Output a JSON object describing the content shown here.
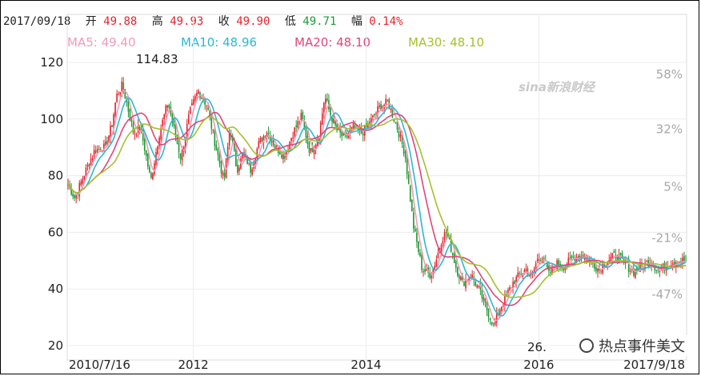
{
  "quote": {
    "date": "2017/09/18",
    "open_label": "开",
    "open_value": "49.88",
    "high_label": "高",
    "high_value": "49.93",
    "close_label": "收",
    "close_value": "49.90",
    "low_label": "低",
    "low_value": "49.71",
    "change_label": "幅",
    "change_value": "0.14%",
    "colors": {
      "up": "#e8232c",
      "down": "#1a9b33",
      "neutral": "#222222"
    }
  },
  "moving_averages": [
    {
      "label": "MA5: 49.40",
      "color": "#f39ab9"
    },
    {
      "label": "MA10: 48.96",
      "color": "#2bb8d4"
    },
    {
      "label": "MA20: 48.10",
      "color": "#e0457a"
    },
    {
      "label": "MA30: 48.10",
      "color": "#a3c22e"
    }
  ],
  "watermark": "sina新浪财经",
  "overlay_text": "热点事件美文",
  "chart_data": {
    "type": "line",
    "title": "",
    "y_ticks": [
      120,
      100,
      80,
      60,
      40,
      20
    ],
    "ylim": [
      20,
      120
    ],
    "pct_ticks": [
      "58%",
      "32%",
      "5%",
      "-21%",
      "-47%"
    ],
    "pct_tick_values": [
      115.8,
      96.4,
      76.1,
      58.0,
      38.1
    ],
    "x_ticks": [
      {
        "label": "2010/7/16",
        "x": 2010.54
      },
      {
        "label": "2012",
        "x": 2012.0
      },
      {
        "label": "2014",
        "x": 2014.0
      },
      {
        "label": "2016",
        "x": 2016.0
      },
      {
        "label": "2017/9/18",
        "x": 2017.71
      }
    ],
    "xlim": [
      2010.54,
      2017.71
    ],
    "annotations": [
      {
        "text": "114.83",
        "x": 2011.2,
        "y": 114.83
      },
      {
        "text": "26.",
        "x": 2015.95,
        "y": 26.0
      }
    ],
    "grid": true,
    "series": [
      {
        "x": [
          2010.54,
          2010.62,
          2010.72,
          2010.85,
          2010.97,
          2011.05,
          2011.1,
          2011.17,
          2011.22,
          2011.3,
          2011.38,
          2011.44,
          2011.5,
          2011.6,
          2011.7,
          2011.78,
          2011.85,
          2011.95,
          2012.05,
          2012.15,
          2012.25,
          2012.35,
          2012.42,
          2012.5,
          2012.58,
          2012.66,
          2012.75,
          2012.85,
          2012.95,
          2013.05,
          2013.15,
          2013.25,
          2013.35,
          2013.45,
          2013.52,
          2013.58,
          2013.66,
          2013.75,
          2013.85,
          2013.95,
          2014.05,
          2014.15,
          2014.25,
          2014.35,
          2014.45,
          2014.55,
          2014.65,
          2014.75,
          2014.82,
          2014.88,
          2014.93,
          2014.98,
          2015.05,
          2015.12,
          2015.22,
          2015.32,
          2015.4,
          2015.48,
          2015.55,
          2015.62,
          2015.7,
          2015.78,
          2015.85,
          2015.92,
          2015.98,
          2016.05,
          2016.12,
          2016.2,
          2016.3,
          2016.4,
          2016.5,
          2016.6,
          2016.7,
          2016.8,
          2016.9,
          2017.0,
          2017.1,
          2017.2,
          2017.3,
          2017.4,
          2017.5,
          2017.6,
          2017.71
        ],
        "values": [
          77,
          72,
          80,
          89,
          90,
          98,
          108,
          112,
          106,
          95,
          97,
          88,
          78,
          95,
          106,
          95,
          86,
          102,
          110,
          105,
          91,
          78,
          97,
          82,
          88,
          82,
          91,
          96,
          90,
          87,
          95,
          101,
          88,
          94,
          108,
          102,
          96,
          93,
          97,
          95,
          99,
          104,
          106,
          98,
          88,
          62,
          47,
          45,
          51,
          58,
          60,
          55,
          47,
          42,
          45,
          39,
          33,
          27,
          33,
          37,
          42,
          45,
          47,
          44,
          50,
          52,
          45,
          49,
          48,
          51,
          52,
          50,
          47,
          50,
          52,
          49,
          46,
          48,
          50,
          46,
          49,
          50,
          49.9
        ]
      }
    ]
  }
}
